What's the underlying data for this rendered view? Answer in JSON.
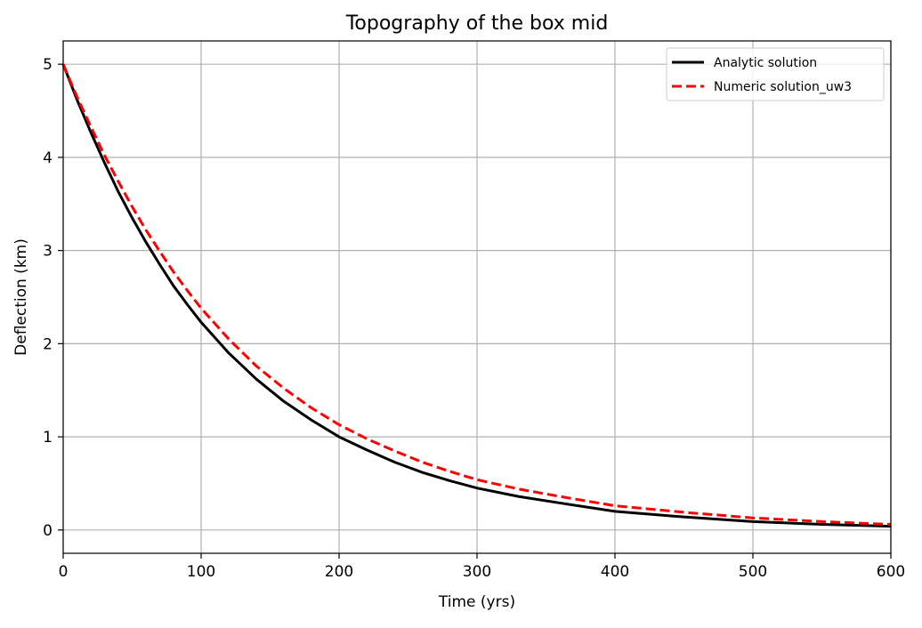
{
  "chart_data": {
    "type": "line",
    "title": "Topography of the box mid",
    "xlabel": "Time (yrs)",
    "ylabel": "Deflection (km)",
    "xlim": [
      0,
      600
    ],
    "ylim": [
      -0.25,
      5.25
    ],
    "xticks": [
      0,
      100,
      200,
      300,
      400,
      500,
      600
    ],
    "yticks": [
      0,
      1,
      2,
      3,
      4,
      5
    ],
    "grid": true,
    "legend": "top-right",
    "series": [
      {
        "name": "Analytic solution",
        "color": "#000000",
        "style": "solid",
        "x": [
          0,
          10,
          20,
          30,
          40,
          50,
          60,
          70,
          80,
          90,
          100,
          120,
          140,
          160,
          180,
          200,
          220,
          240,
          260,
          280,
          300,
          330,
          360,
          400,
          450,
          500,
          550,
          600
        ],
        "y": [
          5.0,
          4.62,
          4.27,
          3.94,
          3.63,
          3.35,
          3.09,
          2.85,
          2.62,
          2.42,
          2.23,
          1.9,
          1.62,
          1.38,
          1.18,
          1.0,
          0.86,
          0.73,
          0.62,
          0.53,
          0.45,
          0.36,
          0.29,
          0.2,
          0.14,
          0.09,
          0.06,
          0.04
        ]
      },
      {
        "name": "Numeric solution_uw3",
        "color": "#ff0000",
        "style": "dashed",
        "x": [
          0,
          10,
          20,
          30,
          40,
          50,
          60,
          70,
          80,
          90,
          100,
          120,
          140,
          160,
          180,
          200,
          220,
          240,
          260,
          280,
          300,
          330,
          360,
          400,
          450,
          500,
          550,
          600
        ],
        "y": [
          5.0,
          4.65,
          4.33,
          4.02,
          3.74,
          3.47,
          3.22,
          2.99,
          2.77,
          2.57,
          2.38,
          2.05,
          1.76,
          1.52,
          1.31,
          1.13,
          0.98,
          0.85,
          0.73,
          0.63,
          0.54,
          0.44,
          0.36,
          0.26,
          0.19,
          0.13,
          0.09,
          0.06
        ]
      }
    ]
  }
}
